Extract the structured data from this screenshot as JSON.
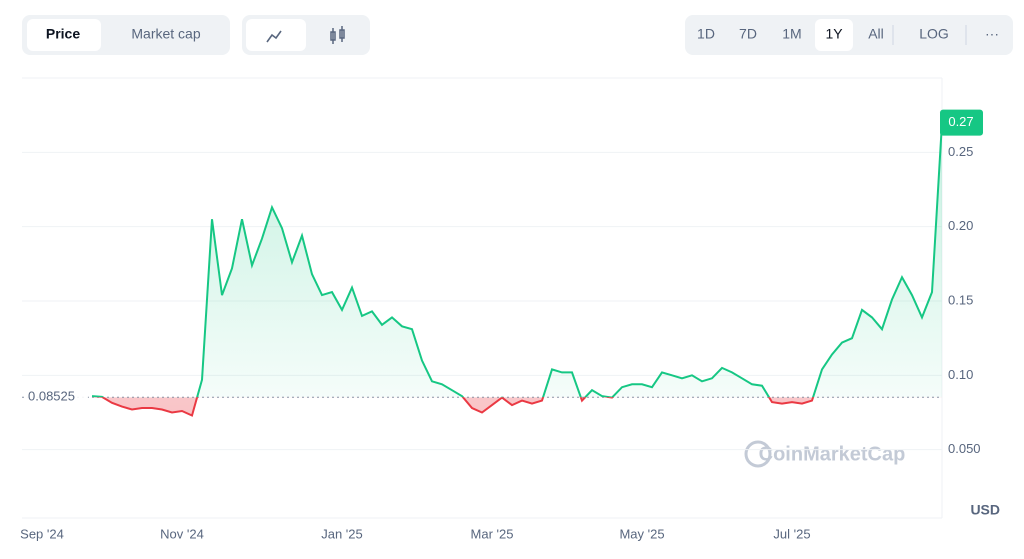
{
  "tabs": [
    "Price",
    "Market cap"
  ],
  "ranges": [
    "1D",
    "7D",
    "1M",
    "1Y",
    "All"
  ],
  "active_range": "1Y",
  "scale_toggle": "LOG",
  "menu": "···",
  "chart_data": {
    "type": "line",
    "watermark": "CoinMarketCap",
    "ylabel": "USD",
    "categories": [
      null,
      null,
      "Sep '24",
      null,
      null,
      null,
      null,
      null,
      null,
      null,
      null,
      null,
      null,
      null,
      null,
      null,
      "Nov '24",
      null,
      null,
      null,
      null,
      null,
      null,
      null,
      null,
      null,
      null,
      null,
      null,
      null,
      null,
      null,
      "Jan '25",
      null,
      null,
      null,
      null,
      null,
      null,
      null,
      null,
      null,
      null,
      null,
      null,
      null,
      null,
      "Mar '25",
      null,
      null,
      null,
      null,
      null,
      null,
      null,
      null,
      null,
      null,
      null,
      null,
      null,
      null,
      "May '25",
      null,
      null,
      null,
      null,
      null,
      null,
      null,
      null,
      null,
      null,
      null,
      null,
      null,
      null,
      "Jul '25",
      null,
      null,
      null,
      null,
      null,
      null,
      null,
      null,
      null,
      null,
      null,
      null,
      null,
      null,
      null
    ],
    "values": [
      null,
      null,
      null,
      null,
      null,
      null,
      null,
      0.086,
      0.0855,
      0.0815,
      0.079,
      0.077,
      0.078,
      0.078,
      0.077,
      0.075,
      0.076,
      0.073,
      0.097,
      0.205,
      0.154,
      0.172,
      0.205,
      0.174,
      0.192,
      0.213,
      0.199,
      0.176,
      0.194,
      0.168,
      0.154,
      0.156,
      0.144,
      0.159,
      0.14,
      0.143,
      0.134,
      0.139,
      0.133,
      0.131,
      0.11,
      0.096,
      0.094,
      0.09,
      0.086,
      0.078,
      0.075,
      0.08,
      0.085,
      0.08,
      0.083,
      0.081,
      0.083,
      0.104,
      0.102,
      0.102,
      0.083,
      0.09,
      0.086,
      0.085,
      0.092,
      0.094,
      0.094,
      0.092,
      0.102,
      0.1,
      0.098,
      0.1,
      0.096,
      0.098,
      0.105,
      0.102,
      0.098,
      0.094,
      0.093,
      0.082,
      0.081,
      0.082,
      0.081,
      0.083,
      0.104,
      0.114,
      0.122,
      0.125,
      0.144,
      0.139,
      0.131,
      0.151,
      0.166,
      0.154,
      0.139,
      0.156,
      0.27
    ],
    "baseline": 0.08525,
    "up_color": "#16c784",
    "down_color": "#ea3943",
    "ylim": [
      0,
      0.3
    ],
    "yticks": [
      0.25,
      {
        "value": 0.2,
        "label": "0.20"
      },
      0.15,
      {
        "value": 0.1,
        "label": "0.10"
      },
      {
        "value": 0.05,
        "label": "0.050"
      }
    ],
    "grid": true
  }
}
